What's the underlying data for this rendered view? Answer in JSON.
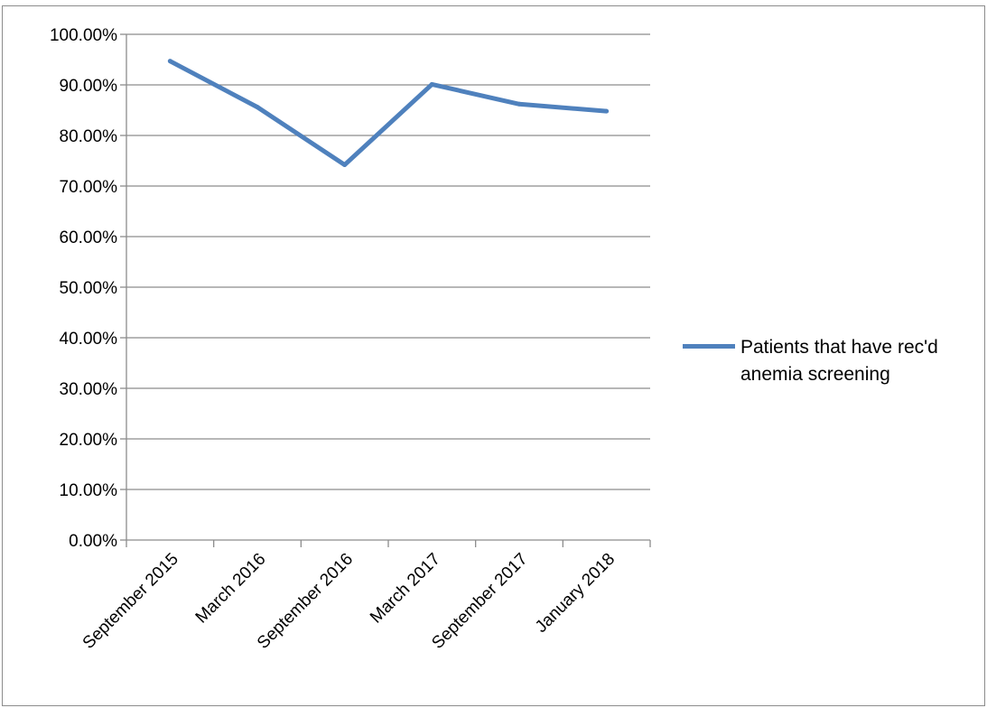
{
  "chart_data": {
    "type": "line",
    "categories": [
      "September 2015",
      "March 2016",
      "September 2016",
      "March 2017",
      "September 2017",
      "January 2018"
    ],
    "series": [
      {
        "name": "Patients that have rec'd anemia screening",
        "values": [
          0.947,
          0.856,
          0.742,
          0.901,
          0.862,
          0.848
        ],
        "color": "#4f81bd"
      }
    ],
    "y_ticks": [
      "0.00%",
      "10.00%",
      "20.00%",
      "30.00%",
      "40.00%",
      "50.00%",
      "60.00%",
      "70.00%",
      "80.00%",
      "90.00%",
      "100.00%"
    ],
    "ylim": [
      0,
      1
    ],
    "grid": true,
    "legend_position": "right",
    "gridline_color": "#8c8c8c"
  }
}
